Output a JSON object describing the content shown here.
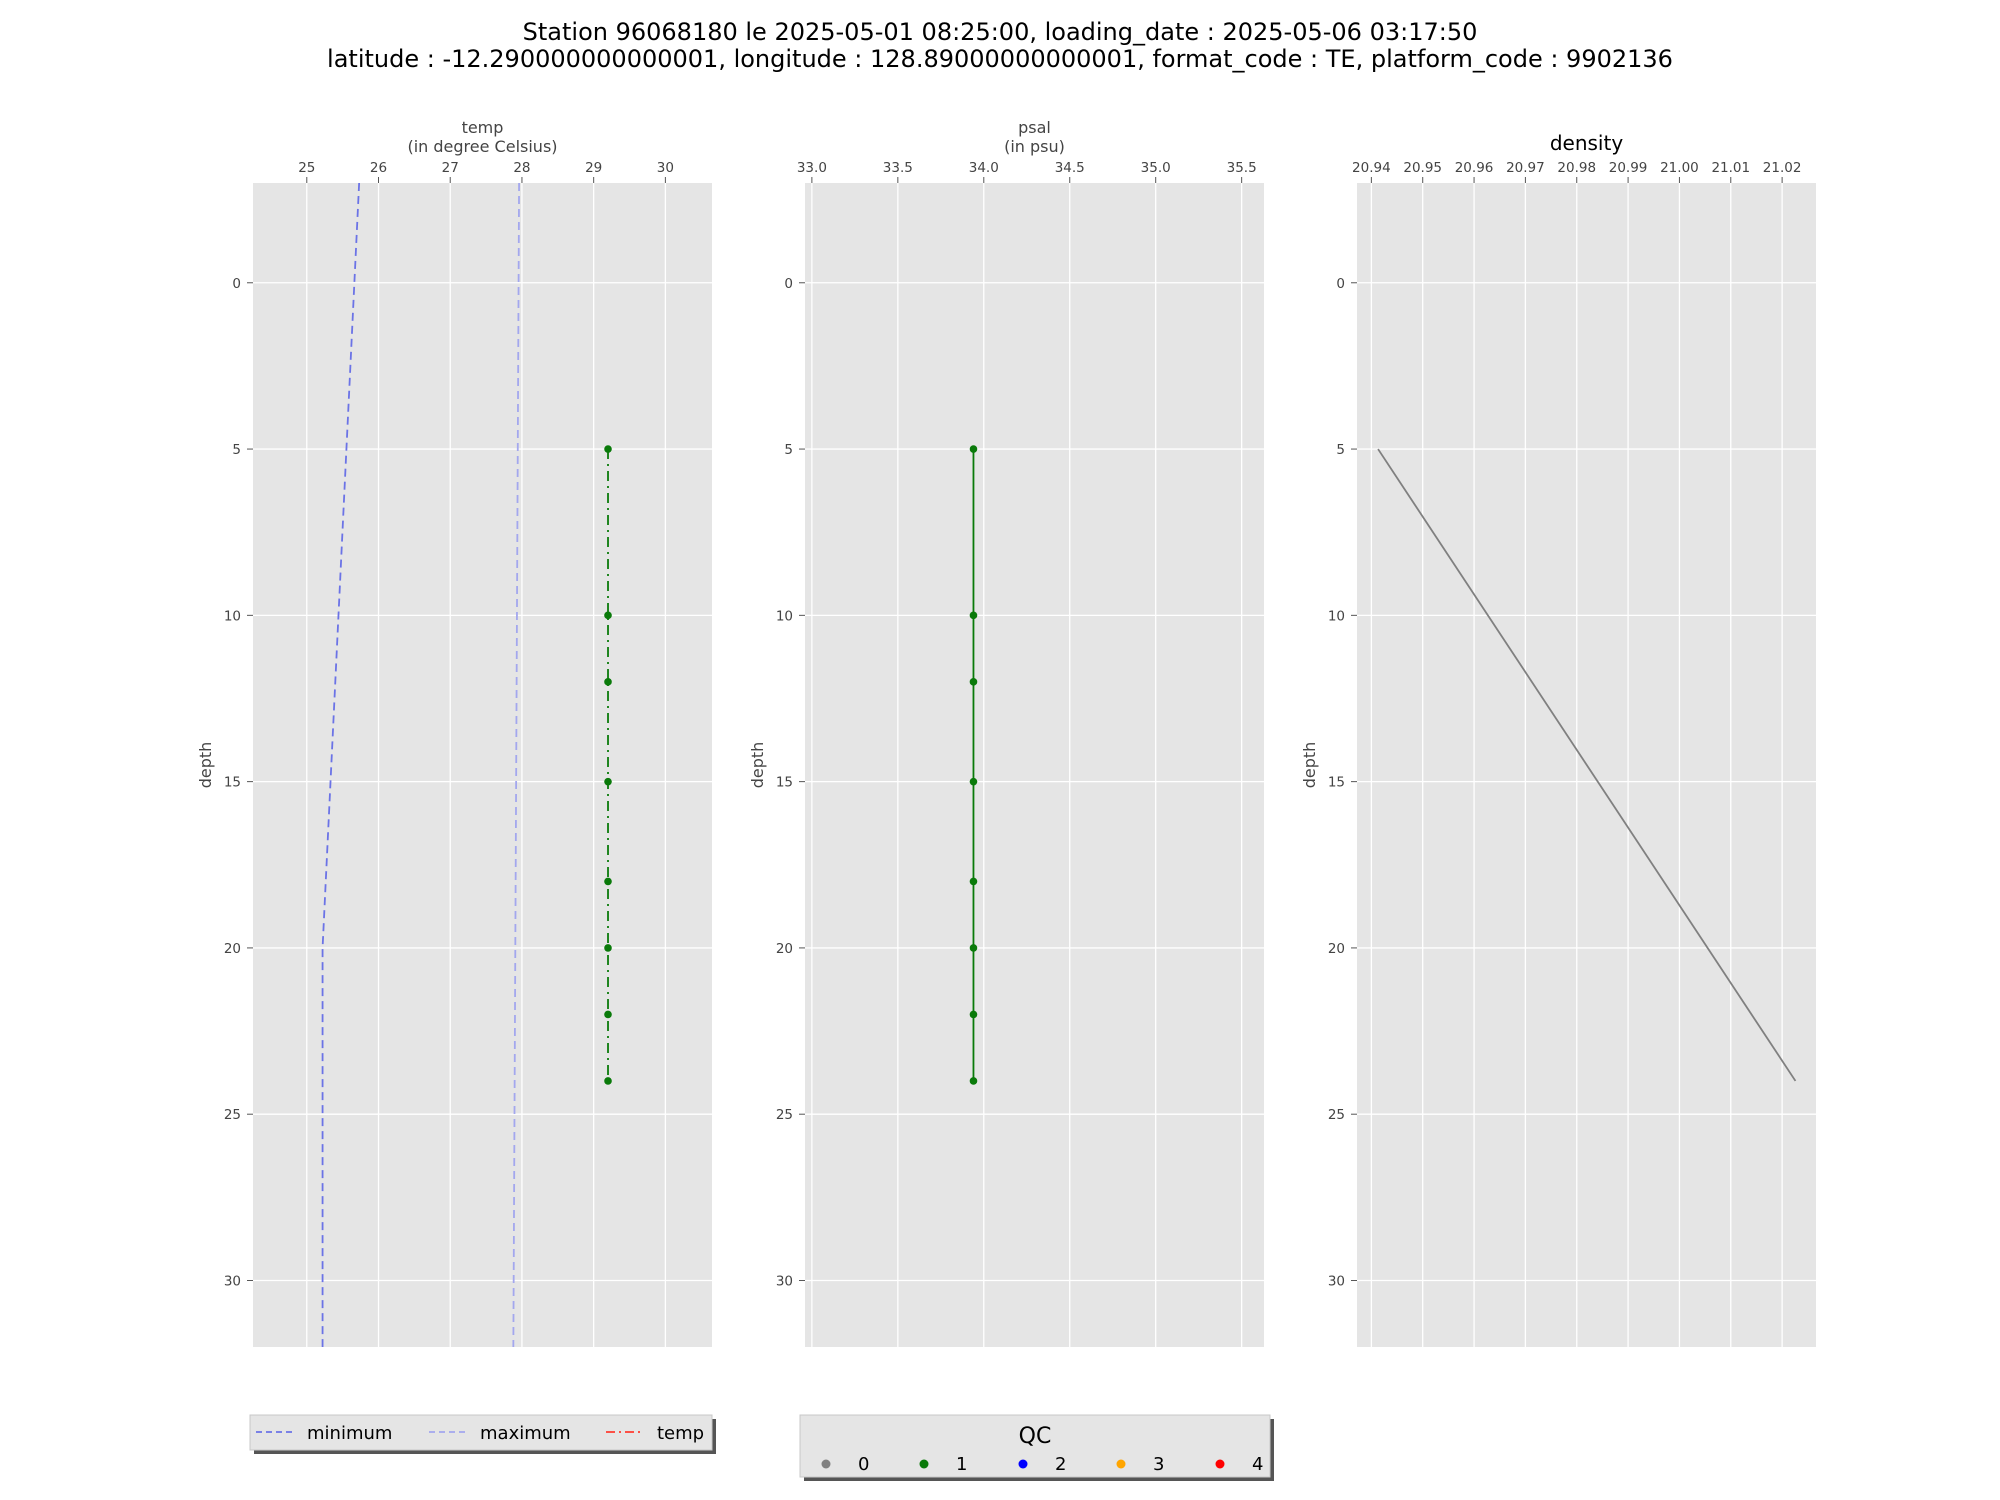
{
  "title": {
    "line1": "Station 96068180 le 2025-05-01 08:25:00, loading_date : 2025-05-06 03:17:50",
    "line2": "latitude : -12.290000000000001, longitude : 128.89000000000001, format_code : TE, platform_code : 9902136"
  },
  "colors": {
    "panel_bg": "#e5e5e5",
    "grid": "#ffffff",
    "minimum": "#6b73e6",
    "maximum": "#a3a7ee",
    "temp": "#ff3b30",
    "qc0": "#808080",
    "qc1": "#0a7a0a",
    "qc2": "#0000ff",
    "qc3": "#ffa500",
    "qc4": "#ff0000",
    "density_line": "#808080"
  },
  "chart_data": [
    {
      "type": "line",
      "xlabel_line1": "temp",
      "xlabel_line2": "(in degree Celsius)",
      "ylabel": "depth",
      "xlim": [
        24.25,
        30.65
      ],
      "ylim": [
        32,
        -3
      ],
      "x_ticks": [
        25,
        26,
        27,
        28,
        29,
        30
      ],
      "y_ticks": [
        0,
        5,
        10,
        15,
        20,
        25,
        30
      ],
      "grid": true,
      "series": [
        {
          "name": "minimum",
          "style": "dashed",
          "points": [
            [
              25.73,
              -3
            ],
            [
              25.22,
              20
            ],
            [
              25.22,
              32
            ]
          ]
        },
        {
          "name": "maximum",
          "style": "dashed",
          "points": [
            [
              27.96,
              -3
            ],
            [
              27.88,
              32
            ]
          ]
        },
        {
          "name": "temp",
          "style": "dashdot",
          "qc": 1,
          "points": [
            [
              29.2,
              5
            ],
            [
              29.2,
              10
            ],
            [
              29.2,
              12
            ],
            [
              29.2,
              15
            ],
            [
              29.2,
              18
            ],
            [
              29.2,
              20
            ],
            [
              29.2,
              22
            ],
            [
              29.2,
              24
            ]
          ]
        }
      ]
    },
    {
      "type": "line",
      "xlabel_line1": "psal",
      "xlabel_line2": "(in psu)",
      "ylabel": "depth",
      "xlim": [
        32.96,
        35.63
      ],
      "ylim": [
        32,
        -3
      ],
      "x_ticks": [
        "33.0",
        "33.5",
        "34.0",
        "34.5",
        "35.0",
        "35.5"
      ],
      "y_ticks": [
        0,
        5,
        10,
        15,
        20,
        25,
        30
      ],
      "grid": true,
      "series": [
        {
          "style": "solid",
          "qc": 1,
          "points": [
            [
              33.94,
              5
            ],
            [
              33.94,
              10
            ],
            [
              33.94,
              12
            ],
            [
              33.94,
              15
            ],
            [
              33.94,
              18
            ],
            [
              33.94,
              20
            ],
            [
              33.94,
              22
            ],
            [
              33.94,
              24
            ]
          ]
        }
      ]
    },
    {
      "type": "line",
      "title": "density",
      "ylabel": "depth",
      "xlim": [
        20.9372,
        21.0266
      ],
      "ylim": [
        32,
        -3
      ],
      "x_ticks": [
        "20.94",
        "20.95",
        "20.96",
        "20.97",
        "20.98",
        "20.99",
        "21.00",
        "21.01",
        "21.02"
      ],
      "y_ticks": [
        0,
        5,
        10,
        15,
        20,
        25,
        30
      ],
      "grid": true,
      "series": [
        {
          "style": "solid",
          "points": [
            [
              20.9413,
              5
            ],
            [
              21.0226,
              24
            ]
          ]
        }
      ]
    }
  ],
  "legend_lines": {
    "items": [
      {
        "label": "minimum",
        "style": "dashed",
        "color_key": "minimum"
      },
      {
        "label": "maximum",
        "style": "dashed",
        "color_key": "maximum"
      },
      {
        "label": "temp",
        "style": "dashdot",
        "color_key": "temp"
      }
    ]
  },
  "legend_qc": {
    "title": "QC",
    "items": [
      {
        "label": "0",
        "color_key": "qc0"
      },
      {
        "label": "1",
        "color_key": "qc1"
      },
      {
        "label": "2",
        "color_key": "qc2"
      },
      {
        "label": "3",
        "color_key": "qc3"
      },
      {
        "label": "4",
        "color_key": "qc4"
      }
    ]
  }
}
